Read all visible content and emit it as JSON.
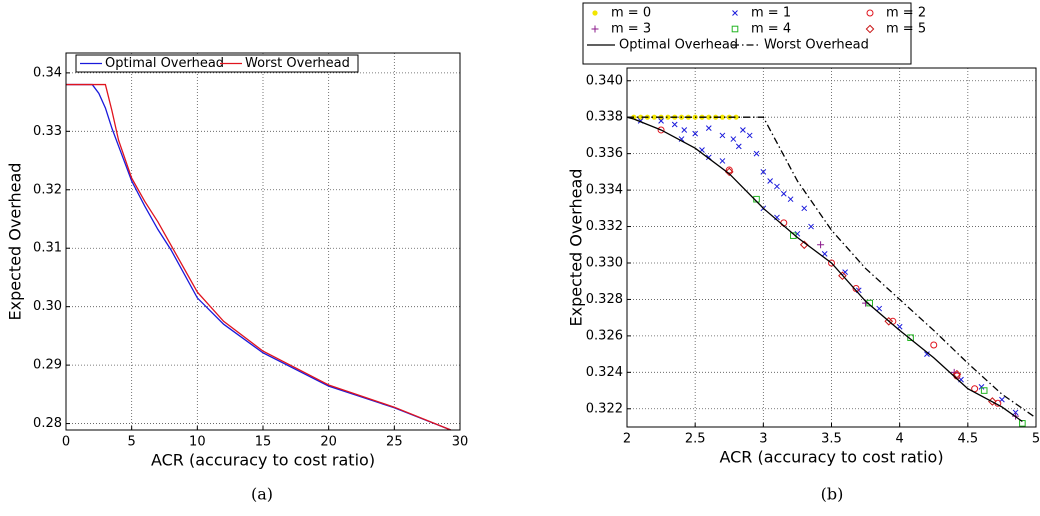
{
  "chart_data": [
    {
      "type": "line",
      "caption": "(a)",
      "x_label": "ACR (accuracy to cost ratio)",
      "y_label": "Expected Overhead",
      "xlim": [
        0,
        30
      ],
      "ylim": [
        0.2789,
        0.3434
      ],
      "xticks": [
        0,
        5,
        10,
        15,
        20,
        25,
        30
      ],
      "yticks": [
        0.28,
        0.29,
        {
          "value": 0.3,
          "label": "0.30"
        },
        0.31,
        0.32,
        0.33,
        0.34
      ],
      "grid": true,
      "series": [
        {
          "name": "Optimal Overhead",
          "color": "#1a1adb",
          "dash": "solid",
          "x": [
            0,
            2,
            2.5,
            3,
            3.5,
            4,
            5,
            6,
            7,
            8,
            10,
            12,
            15,
            20,
            25,
            29.3
          ],
          "values": [
            0.338,
            0.338,
            0.3365,
            0.334,
            0.3305,
            0.3275,
            0.3215,
            0.3172,
            0.3132,
            0.3097,
            0.3015,
            0.297,
            0.2921,
            0.2864,
            0.2827,
            0.2789
          ]
        },
        {
          "name": "Worst Overhead",
          "color": "#e0141e",
          "dash": "solid",
          "x": [
            0,
            3,
            3.5,
            4,
            5,
            6,
            7,
            8,
            10,
            12,
            15,
            20,
            25,
            29.3
          ],
          "values": [
            0.338,
            0.338,
            0.3335,
            0.3285,
            0.322,
            0.318,
            0.3145,
            0.3105,
            0.3025,
            0.2975,
            0.2924,
            0.2866,
            0.2828,
            0.2789
          ]
        }
      ]
    },
    {
      "type": "scatter",
      "caption": "(b)",
      "x_label": "ACR (accuracy to cost ratio)",
      "y_label": "Expected Overhead",
      "xlim": [
        2,
        5
      ],
      "ylim": [
        0.321,
        0.3407
      ],
      "xticks": [
        2,
        2.5,
        3,
        3.5,
        4,
        4.5,
        5
      ],
      "yticks": [
        0.322,
        0.324,
        0.326,
        0.328,
        {
          "value": 0.33,
          "label": "0.330"
        },
        0.332,
        0.334,
        0.336,
        0.338,
        {
          "value": 0.34,
          "label": "0.340"
        }
      ],
      "grid": true,
      "series": [
        {
          "name": "m = 0",
          "color": "#f2e600",
          "marker": "dot",
          "x": [
            2.05,
            2.1,
            2.15,
            2.2,
            2.25,
            2.3,
            2.35,
            2.4,
            2.45,
            2.5,
            2.55,
            2.6,
            2.65,
            2.7,
            2.75,
            2.8
          ],
          "values": [
            0.338,
            0.338,
            0.338,
            0.338,
            0.338,
            0.338,
            0.338,
            0.338,
            0.338,
            0.338,
            0.338,
            0.338,
            0.338,
            0.338,
            0.338,
            0.338
          ]
        },
        {
          "name": "m = 1",
          "color": "#1a1adb",
          "marker": "x",
          "x": [
            2.1,
            2.25,
            2.35,
            2.42,
            2.5,
            2.4,
            2.6,
            2.7,
            2.78,
            2.85,
            2.9,
            2.95,
            2.6,
            2.7,
            2.82,
            3.0,
            3.05,
            3.1,
            3.15,
            3.2,
            3.3,
            3.35,
            3.0,
            3.1,
            3.45,
            3.6,
            3.7,
            3.85,
            4.0,
            4.2,
            4.45,
            4.6,
            4.75,
            4.85,
            2.55,
            3.25
          ],
          "values": [
            0.3378,
            0.3378,
            0.3376,
            0.3373,
            0.3371,
            0.3368,
            0.3374,
            0.337,
            0.3368,
            0.3373,
            0.337,
            0.336,
            0.3358,
            0.3356,
            0.3364,
            0.335,
            0.3345,
            0.3342,
            0.3338,
            0.3335,
            0.333,
            0.332,
            0.333,
            0.3325,
            0.3305,
            0.3295,
            0.3285,
            0.3275,
            0.3265,
            0.325,
            0.3236,
            0.3232,
            0.3225,
            0.3218,
            0.3362,
            0.3316
          ]
        },
        {
          "name": "m = 2",
          "color": "#e0141e",
          "marker": "circle",
          "x": [
            2.25,
            2.75,
            3.15,
            3.5,
            3.68,
            3.95,
            4.25,
            4.42,
            4.55,
            4.72
          ],
          "values": [
            0.3373,
            0.3351,
            0.3322,
            0.33,
            0.3286,
            0.3268,
            0.3255,
            0.3238,
            0.3231,
            0.3223
          ]
        },
        {
          "name": "m = 3",
          "color": "#8b1a8b",
          "marker": "plus",
          "x": [
            3.42,
            3.75,
            4.4,
            4.85
          ],
          "values": [
            0.331,
            0.3278,
            0.324,
            0.3216
          ]
        },
        {
          "name": "m = 4",
          "color": "#22b522",
          "marker": "square",
          "x": [
            2.95,
            3.22,
            3.78,
            4.08,
            4.62,
            4.9
          ],
          "values": [
            0.3335,
            0.3315,
            0.3278,
            0.3259,
            0.323,
            0.3212
          ]
        },
        {
          "name": "m = 5",
          "color": "#c81414",
          "marker": "diamond",
          "x": [
            2.75,
            3.3,
            3.58,
            3.92,
            4.42,
            4.68
          ],
          "values": [
            0.335,
            0.331,
            0.3293,
            0.3268,
            0.3239,
            0.3224
          ]
        },
        {
          "name": "Optimal Overhead",
          "color": "#000000",
          "dash": "solid",
          "x": [
            2,
            2.05,
            2.25,
            2.5,
            2.75,
            3,
            3.25,
            3.5,
            3.75,
            4,
            4.25,
            4.5,
            4.75,
            4.9
          ],
          "values": [
            0.338,
            0.3379,
            0.3373,
            0.3363,
            0.3349,
            0.333,
            0.3314,
            0.33,
            0.3279,
            0.3263,
            0.3248,
            0.3231,
            0.3221,
            0.3213
          ]
        },
        {
          "name": "Worst Overhead",
          "color": "#000000",
          "dash": "dashdot",
          "x": [
            2,
            3,
            3.25,
            3.5,
            3.75,
            4,
            4.25,
            4.5,
            4.75,
            5
          ],
          "values": [
            0.338,
            0.338,
            0.3345,
            0.3318,
            0.3297,
            0.328,
            0.3263,
            0.3245,
            0.3228,
            0.3215
          ]
        }
      ]
    }
  ]
}
